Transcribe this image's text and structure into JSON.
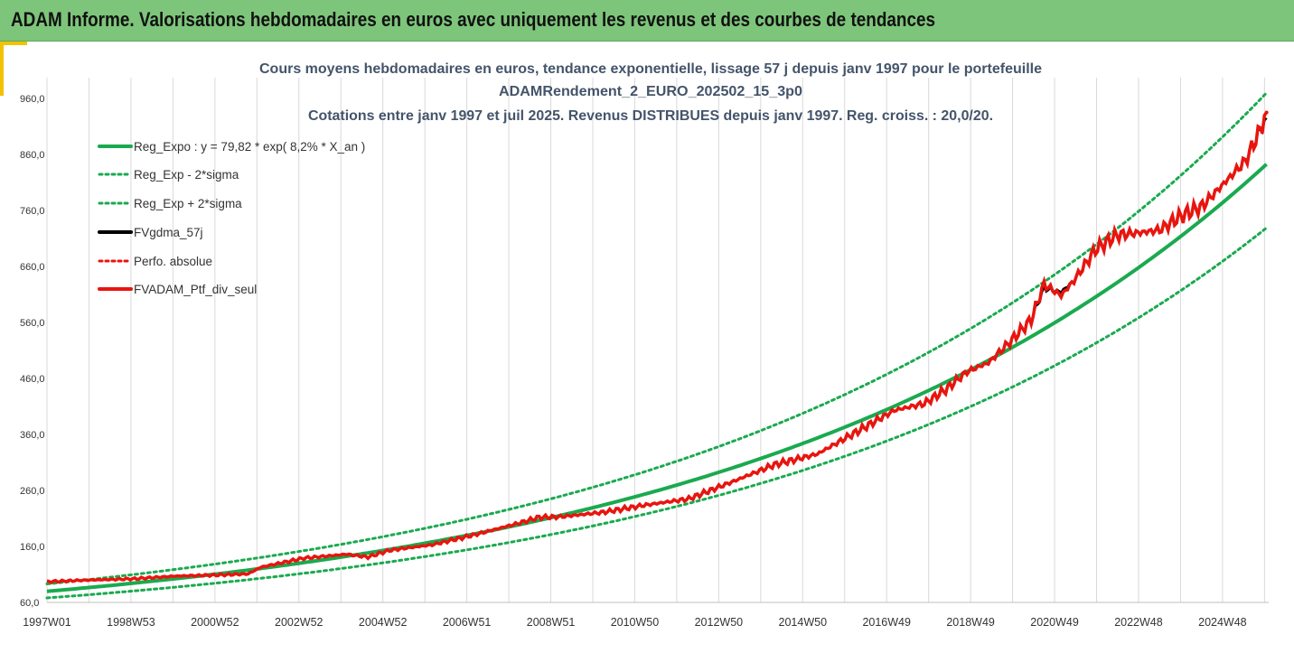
{
  "header": {
    "title": "ADAM Informe. Valorisations hebdomadaires en euros avec uniquement les revenus et des courbes de tendances"
  },
  "colors": {
    "header_bg": "#7dc57a",
    "green": "#1aaa4f",
    "black": "#000000",
    "red": "#e8150f",
    "grid": "#d9d9d9",
    "title_text": "#44546a"
  },
  "chart_data": {
    "type": "line",
    "title_lines": [
      "Cours moyens hebdomadaires  en euros, tendance exponentielle, lissage 57 j depuis janv 1997 pour le portefeuille",
      "ADAMRendement_2_EURO_202502_15_3p0",
      "Cotations  entre janv 1997 et juil 2025. Revenus DISTRIBUES depuis janv 1997. Reg. croiss. : 20,0/20."
    ],
    "x_tick_labels": [
      "1997W01",
      "1998W53",
      "2000W52",
      "2002W52",
      "2004W52",
      "2006W51",
      "2008W51",
      "2010W50",
      "2012W50",
      "2014W50",
      "2016W49",
      "2018W49",
      "2020W49",
      "2022W48",
      "2024W48"
    ],
    "x_range": [
      1997.0,
      2025.55
    ],
    "ylim": [
      60,
      960
    ],
    "y_ticks": [
      60,
      160,
      260,
      360,
      460,
      560,
      660,
      760,
      860,
      960
    ],
    "y_tick_labels": [
      "60,0",
      "160,0",
      "260,0",
      "360,0",
      "460,0",
      "560,0",
      "660,0",
      "760,0",
      "860,0",
      "960,0"
    ],
    "grid": "vertical",
    "legend_position": "top-left",
    "series": [
      {
        "name": "Reg_Expo : y = 79,82 * exp( 8,2% *  X_an )",
        "style": "solid",
        "color": "#1aaa4f",
        "x": [
          1997.0,
          2025.55
        ],
        "y": [
          79.82,
          846
        ],
        "formula": "79.82*exp(0.082*(x-1997))"
      },
      {
        "name": "Reg_Exp - 2*sigma",
        "style": "dotted",
        "color": "#1aaa4f",
        "x": [
          1997.0,
          2025.55
        ],
        "y": [
          68,
          732
        ],
        "formula": "68*exp(0.0831*(x-1997))"
      },
      {
        "name": "Reg_Exp + 2*sigma",
        "style": "dotted",
        "color": "#1aaa4f",
        "x": [
          1997.0,
          2025.55
        ],
        "y": [
          93,
          974
        ],
        "formula": "93*exp(0.0823*(x-1997))"
      },
      {
        "name": "FVgdma_57j",
        "style": "solid",
        "color": "#000000",
        "x": [
          1997.0,
          1998.0,
          1999.0,
          2000.0,
          2001.0,
          2001.7,
          2002.0,
          2003.0,
          2004.0,
          2004.5,
          2005.0,
          2006.0,
          2007.0,
          2008.0,
          2008.5,
          2009.0,
          2010.0,
          2011.0,
          2012.0,
          2013.0,
          2014.0,
          2015.0,
          2016.0,
          2016.8,
          2017.5,
          2018.0,
          2018.5,
          2019.0,
          2019.5,
          2020.0,
          2020.3,
          2020.7,
          2021.0,
          2021.5,
          2022.0,
          2022.5,
          2023.0,
          2023.5,
          2024.0,
          2024.5,
          2025.0,
          2025.3,
          2025.5
        ],
        "y": [
          97,
          100,
          102,
          107,
          109,
          111,
          123,
          139,
          146,
          141,
          153,
          163,
          181,
          201,
          212,
          213,
          221,
          234,
          245,
          275,
          306,
          325,
          368,
          403,
          415,
          440,
          472,
          488,
          525,
          565,
          620,
          615,
          635,
          690,
          716,
          720,
          725,
          750,
          768,
          808,
          848,
          895,
          925
        ]
      },
      {
        "name": "Perfo. absolue",
        "style": "dotted",
        "color": "#e8150f",
        "x": [
          2025.5
        ],
        "y": [
          935
        ]
      },
      {
        "name": "FVADAM_Ptf_div_seul",
        "style": "solid",
        "color": "#e8150f",
        "x": [
          1997.0,
          1998.0,
          1999.0,
          2000.0,
          2001.0,
          2001.7,
          2002.0,
          2003.0,
          2004.0,
          2004.5,
          2005.0,
          2006.0,
          2007.0,
          2008.0,
          2008.5,
          2009.0,
          2010.0,
          2011.0,
          2012.0,
          2013.0,
          2014.0,
          2015.0,
          2016.0,
          2016.8,
          2017.5,
          2018.0,
          2018.5,
          2019.0,
          2019.5,
          2020.0,
          2020.3,
          2020.7,
          2021.0,
          2021.5,
          2022.0,
          2022.5,
          2023.0,
          2023.5,
          2024.0,
          2024.5,
          2025.0,
          2025.3,
          2025.5
        ],
        "y": [
          97,
          100,
          102,
          107,
          109,
          111,
          123,
          139,
          146,
          141,
          153,
          163,
          181,
          201,
          212,
          213,
          221,
          234,
          245,
          275,
          306,
          325,
          368,
          403,
          415,
          440,
          472,
          488,
          525,
          565,
          628,
          608,
          635,
          690,
          716,
          720,
          725,
          750,
          768,
          808,
          848,
          895,
          935
        ]
      }
    ]
  }
}
